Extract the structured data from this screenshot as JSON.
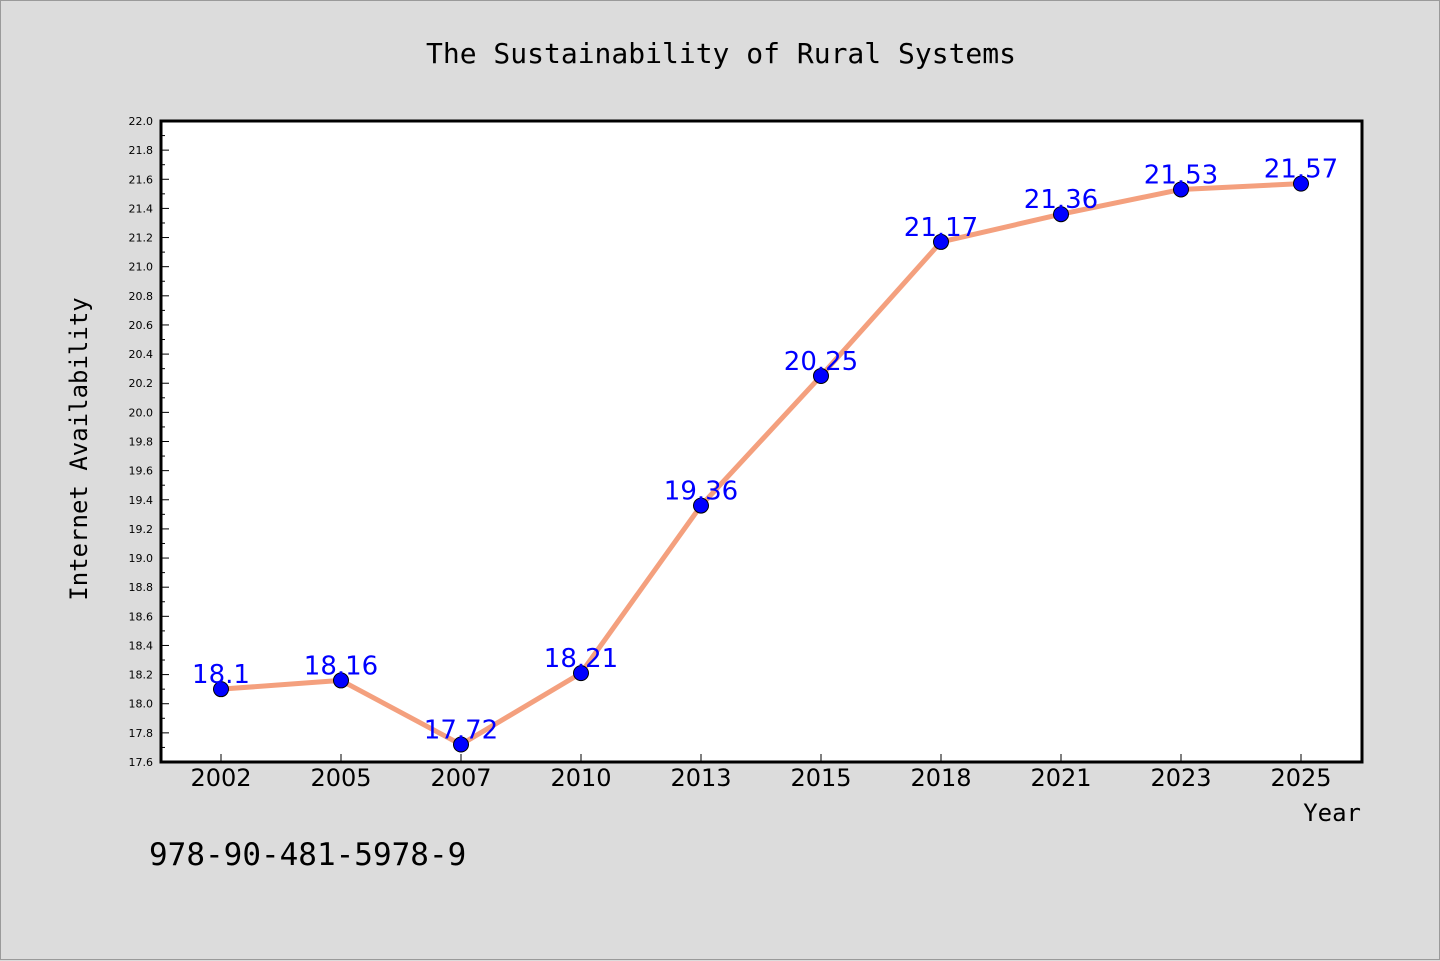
{
  "chart_data": {
    "type": "line",
    "title": "The Sustainability of Rural Systems",
    "xlabel": "Year",
    "ylabel": "Internet Availability",
    "categories": [
      "2002",
      "2005",
      "2007",
      "2010",
      "2013",
      "2015",
      "2018",
      "2021",
      "2023",
      "2025"
    ],
    "values": [
      18.1,
      18.16,
      17.72,
      18.21,
      19.36,
      20.25,
      21.17,
      21.36,
      21.53,
      21.57
    ],
    "data_labels": [
      "18.1",
      "18.16",
      "17.72",
      "18.21",
      "19.36",
      "20.25",
      "21.17",
      "21.36",
      "21.53",
      "21.57"
    ],
    "ylim": [
      17.6,
      22.0
    ],
    "y_ticks": [
      "17.6",
      "17.8",
      "18.0",
      "18.2",
      "18.4",
      "18.6",
      "18.8",
      "19.0",
      "19.2",
      "19.4",
      "19.6",
      "19.8",
      "20.0",
      "20.2",
      "20.4",
      "20.6",
      "20.8",
      "21.0",
      "21.2",
      "21.4",
      "21.6",
      "21.8",
      "22.0"
    ],
    "grid": false,
    "legend": "none",
    "colors": {
      "line": "#f4a07e",
      "marker": "#0000ff",
      "label": "#0000ff",
      "background": "#dcdcdc",
      "plot_background": "#ffffff"
    }
  },
  "footer": {
    "code": "978-90-481-5978-9"
  }
}
